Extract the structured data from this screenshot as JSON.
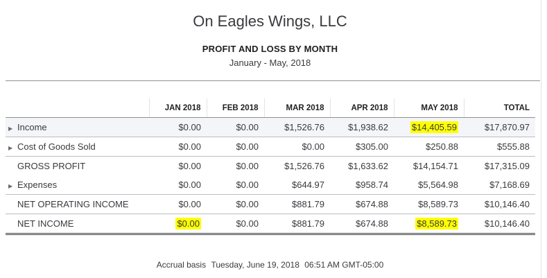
{
  "report": {
    "company": "On Eagles Wings, LLC",
    "title": "PROFIT AND LOSS BY MONTH",
    "date_range": "January - May, 2018"
  },
  "columns": [
    "JAN 2018",
    "FEB 2018",
    "MAR 2018",
    "APR 2018",
    "MAY 2018",
    "TOTAL"
  ],
  "rows": [
    {
      "label": "Income",
      "expandable": true,
      "values": [
        "$0.00",
        "$0.00",
        "$1,526.76",
        "$1,938.62",
        "$14,405.59",
        "$17,870.97"
      ]
    },
    {
      "label": "Cost of Goods Sold",
      "expandable": true,
      "values": [
        "$0.00",
        "$0.00",
        "$0.00",
        "$305.00",
        "$250.88",
        "$555.88"
      ]
    },
    {
      "label": "GROSS PROFIT",
      "expandable": false,
      "values": [
        "$0.00",
        "$0.00",
        "$1,526.76",
        "$1,633.62",
        "$14,154.71",
        "$17,315.09"
      ]
    },
    {
      "label": "Expenses",
      "expandable": true,
      "values": [
        "$0.00",
        "$0.00",
        "$644.97",
        "$958.74",
        "$5,564.98",
        "$7,168.69"
      ]
    },
    {
      "label": "NET OPERATING INCOME",
      "expandable": false,
      "values": [
        "$0.00",
        "$0.00",
        "$881.79",
        "$674.88",
        "$8,589.73",
        "$10,146.40"
      ]
    },
    {
      "label": "NET INCOME",
      "expandable": false,
      "values": [
        "$0.00",
        "$0.00",
        "$881.79",
        "$674.88",
        "$8,589.73",
        "$10,146.40"
      ]
    }
  ],
  "icons": {
    "expand": "triangle-right-icon"
  },
  "colors": {
    "highlight": "#ffff00",
    "row_shade": "#f4f5f8"
  },
  "footer": {
    "basis": "Accrual basis",
    "date": "Tuesday, June 19, 2018",
    "time": "06:51 AM GMT-05:00"
  }
}
